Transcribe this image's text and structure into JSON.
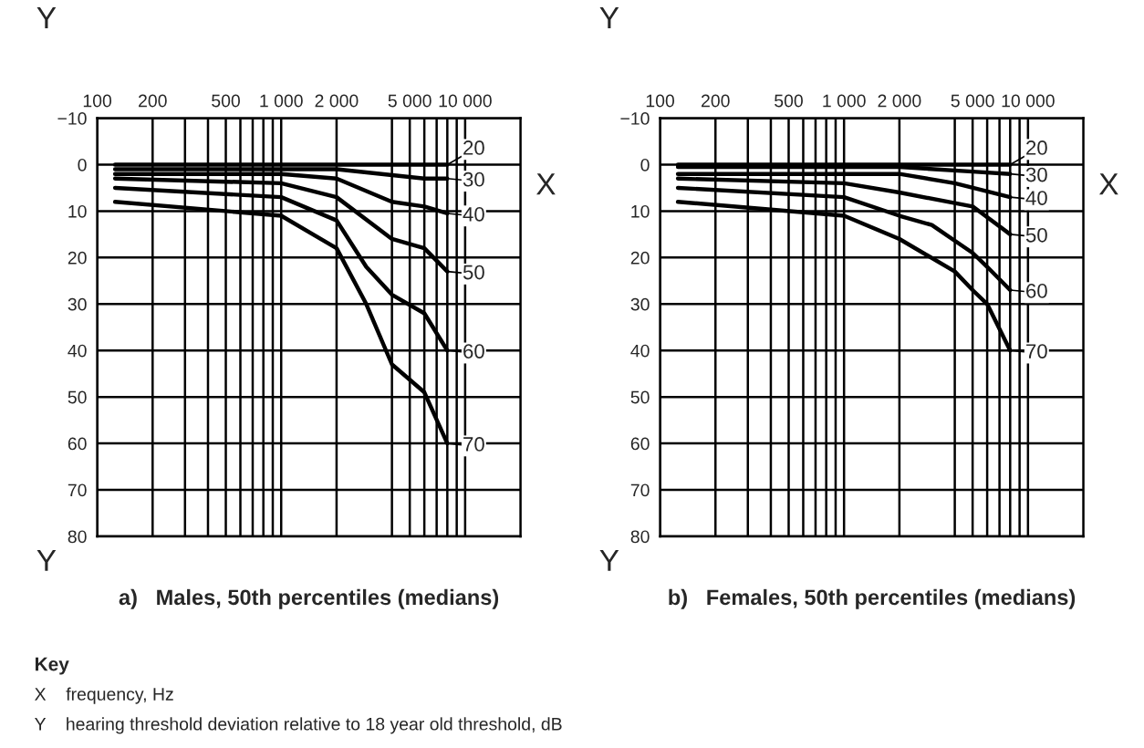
{
  "chart_data": [
    {
      "type": "line",
      "title": "a)   Males, 50th percentiles (medians)",
      "legend": "right",
      "xlabel": "X",
      "ylabel": "Y",
      "log": "x",
      "grid": true,
      "marker": "none",
      "line_style": "solid",
      "xlim": [
        100,
        20000
      ],
      "ylim": [
        80,
        -10
      ],
      "xticks": [
        100,
        200,
        {
          "value": 300,
          "label": null
        },
        {
          "value": 400,
          "label": null
        },
        500,
        {
          "value": 600,
          "label": null
        },
        {
          "value": 700,
          "label": null
        },
        {
          "value": 800,
          "label": null
        },
        {
          "value": 900,
          "label": null
        },
        {
          "value": 1000,
          "label": "1 000"
        },
        {
          "value": 2000,
          "label": "2 000"
        },
        {
          "value": 4000,
          "label": null
        },
        {
          "value": 5000,
          "label": "5 000"
        },
        {
          "value": 6000,
          "label": null
        },
        {
          "value": 7000,
          "label": null
        },
        {
          "value": 8000,
          "label": null
        },
        {
          "value": 9000,
          "label": null
        },
        {
          "value": 10000,
          "label": "10 000"
        }
      ],
      "yticks": [
        {
          "value": -10,
          "label": "−10"
        },
        0,
        10,
        20,
        30,
        40,
        50,
        60,
        70,
        80
      ],
      "series": [
        {
          "name": "20",
          "color": "#000000",
          "x": [
            125,
            1000,
            2000,
            8000
          ],
          "values": [
            0,
            0,
            0,
            0
          ]
        },
        {
          "name": "30",
          "color": "#000000",
          "x": [
            125,
            1000,
            2000,
            6000,
            8000
          ],
          "values": [
            1,
            1,
            1,
            3,
            3
          ]
        },
        {
          "name": "40",
          "color": "#000000",
          "x": [
            125,
            1000,
            2000,
            4000,
            6000,
            8000
          ],
          "values": [
            2,
            2,
            3,
            8,
            9,
            10.5
          ]
        },
        {
          "name": "50",
          "color": "#000000",
          "x": [
            125,
            1000,
            2000,
            4000,
            6000,
            8000
          ],
          "values": [
            3,
            4,
            7,
            16,
            18,
            23
          ]
        },
        {
          "name": "60",
          "color": "#000000",
          "x": [
            125,
            1000,
            2000,
            2900,
            4000,
            6000,
            8000
          ],
          "values": [
            5,
            7,
            12,
            22,
            28,
            32,
            40
          ]
        },
        {
          "name": "70",
          "color": "#000000",
          "x": [
            125,
            1000,
            2000,
            2900,
            4000,
            6000,
            8000
          ],
          "values": [
            8,
            11,
            18,
            30,
            43,
            49,
            60
          ]
        }
      ],
      "annotations": [
        "Y",
        "Key",
        "X    frequency, Hz",
        "Y    hearing threshold deviation relative to 18 year old threshold, dB"
      ]
    },
    {
      "type": "line",
      "title": "b)   Females, 50th percentiles (medians)",
      "legend": "right",
      "xlabel": "X",
      "ylabel": "Y",
      "log": "x",
      "grid": true,
      "marker": "none",
      "line_style": "solid",
      "xlim": [
        100,
        20000
      ],
      "ylim": [
        80,
        -10
      ],
      "xticks": [
        100,
        200,
        {
          "value": 300,
          "label": null
        },
        {
          "value": 400,
          "label": null
        },
        500,
        {
          "value": 600,
          "label": null
        },
        {
          "value": 700,
          "label": null
        },
        {
          "value": 800,
          "label": null
        },
        {
          "value": 900,
          "label": null
        },
        {
          "value": 1000,
          "label": "1 000"
        },
        {
          "value": 2000,
          "label": "2 000"
        },
        {
          "value": 4000,
          "label": null
        },
        {
          "value": 5000,
          "label": "5 000"
        },
        {
          "value": 6000,
          "label": null
        },
        {
          "value": 7000,
          "label": null
        },
        {
          "value": 8000,
          "label": null
        },
        {
          "value": 9000,
          "label": null
        },
        {
          "value": 10000,
          "label": "10 000"
        }
      ],
      "yticks": [
        {
          "value": -10,
          "label": "−10"
        },
        0,
        10,
        20,
        30,
        40,
        50,
        60,
        70,
        80
      ],
      "series": [
        {
          "name": "20",
          "color": "#000000",
          "x": [
            125,
            1000,
            2000,
            8000
          ],
          "values": [
            0,
            0,
            0,
            0
          ]
        },
        {
          "name": "30",
          "color": "#000000",
          "x": [
            125,
            1000,
            2000,
            5000,
            8000
          ],
          "values": [
            0.5,
            0.5,
            0.5,
            1.5,
            2
          ]
        },
        {
          "name": "40",
          "color": "#000000",
          "x": [
            125,
            1000,
            2000,
            4000,
            8000
          ],
          "values": [
            2,
            2,
            2,
            4,
            7
          ]
        },
        {
          "name": "50",
          "color": "#000000",
          "x": [
            125,
            1000,
            2000,
            5000,
            8000
          ],
          "values": [
            3,
            4,
            6,
            9,
            15
          ]
        },
        {
          "name": "60",
          "color": "#000000",
          "x": [
            125,
            1000,
            2000,
            3000,
            5000,
            6000,
            8000
          ],
          "values": [
            5,
            7,
            11,
            13,
            19,
            22,
            27
          ]
        },
        {
          "name": "70",
          "color": "#000000",
          "x": [
            125,
            1000,
            2000,
            4000,
            5000,
            6000,
            8000
          ],
          "values": [
            8,
            11,
            16,
            23,
            27,
            30,
            40
          ]
        }
      ],
      "annotations": [
        "Y"
      ]
    }
  ]
}
